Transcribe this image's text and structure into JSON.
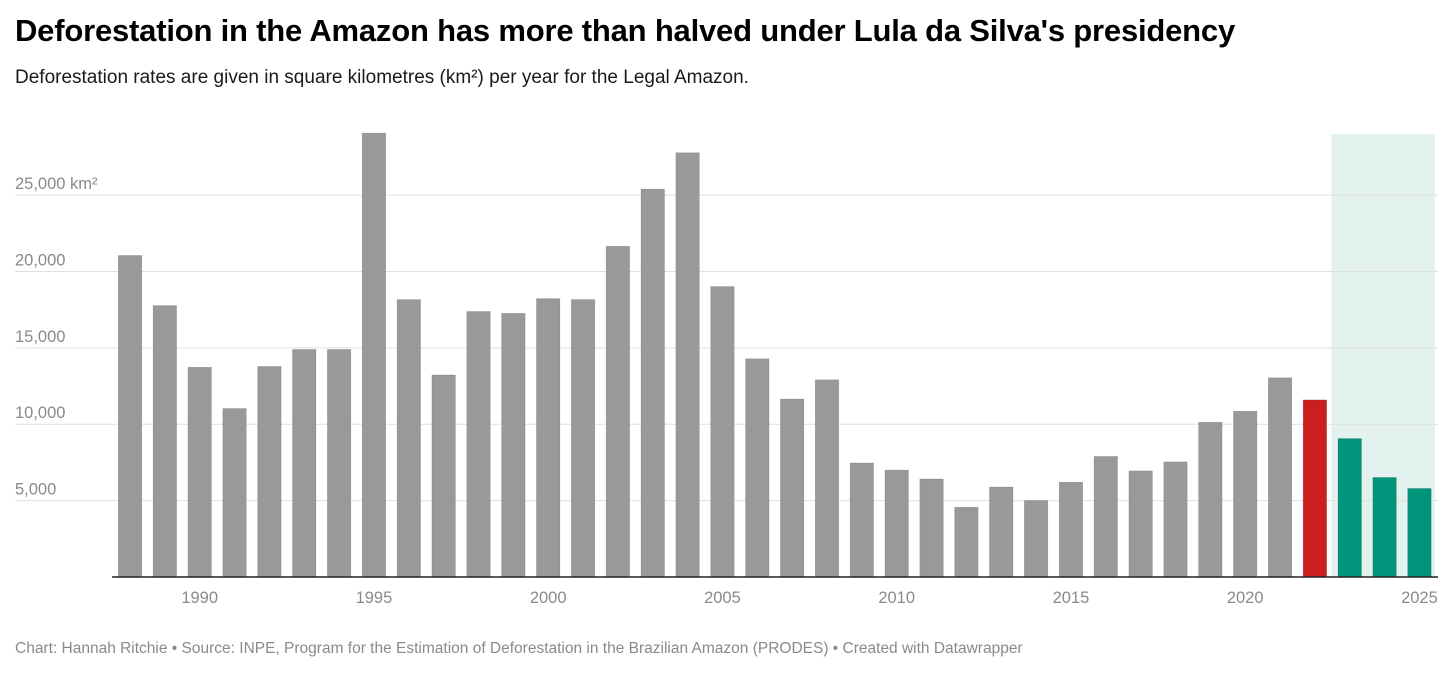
{
  "header": {
    "title": "Deforestation in the Amazon has more than halved under Lula da Silva's presidency",
    "subtitle": "Deforestation rates are given in square kilometres (km²) per year for the Legal Amazon."
  },
  "footer": {
    "credit": "Chart: Hannah Ritchie • Source: INPE, Program for the Estimation of Deforestation in the Brazilian Amazon (PRODES) • Created with Datawrapper"
  },
  "colors": {
    "default_bar": "#999999",
    "highlight_2022": "#c9201e",
    "lula_bars": "#00957a",
    "lula_band": "#e3f2ee",
    "gridline": "#e0e0e0",
    "axis": "#222222"
  },
  "chart_data": {
    "type": "bar",
    "x": [
      1988,
      1989,
      1990,
      1991,
      1992,
      1993,
      1994,
      1995,
      1996,
      1997,
      1998,
      1999,
      2000,
      2001,
      2002,
      2003,
      2004,
      2005,
      2006,
      2007,
      2008,
      2009,
      2010,
      2011,
      2012,
      2013,
      2014,
      2015,
      2016,
      2017,
      2018,
      2019,
      2020,
      2021,
      2022,
      2023,
      2024,
      2025
    ],
    "values": [
      21050,
      17770,
      13730,
      11030,
      13786,
      14896,
      14896,
      29059,
      18161,
      13227,
      17383,
      17259,
      18226,
      18165,
      21651,
      25396,
      27772,
      19014,
      14286,
      11651,
      12911,
      7464,
      7000,
      6418,
      4571,
      5891,
      5012,
      6207,
      7893,
      6947,
      7536,
      10129,
      10851,
      13038,
      11594,
      9064,
      6518,
      5796
    ],
    "bar_colors": [
      "gray",
      "gray",
      "gray",
      "gray",
      "gray",
      "gray",
      "gray",
      "gray",
      "gray",
      "gray",
      "gray",
      "gray",
      "gray",
      "gray",
      "gray",
      "gray",
      "gray",
      "gray",
      "gray",
      "gray",
      "gray",
      "gray",
      "gray",
      "gray",
      "gray",
      "gray",
      "gray",
      "gray",
      "gray",
      "gray",
      "gray",
      "gray",
      "gray",
      "gray",
      "red",
      "green",
      "green",
      "green"
    ],
    "highlight_band": {
      "from": 2023,
      "to": 2025
    },
    "title": "Deforestation in the Amazon has more than halved under Lula da Silva's presidency",
    "xlabel": "",
    "ylabel": "",
    "ylim": [
      0,
      29000
    ],
    "yticks": [
      {
        "value": 5000,
        "label": "5,000"
      },
      {
        "value": 10000,
        "label": "10,000"
      },
      {
        "value": 15000,
        "label": "15,000"
      },
      {
        "value": 20000,
        "label": "20,000"
      },
      {
        "value": 25000,
        "label": "25,000 km²"
      }
    ],
    "xticks": [
      {
        "value": 1990,
        "label": "1990"
      },
      {
        "value": 1995,
        "label": "1995"
      },
      {
        "value": 2000,
        "label": "2000"
      },
      {
        "value": 2005,
        "label": "2005"
      },
      {
        "value": 2010,
        "label": "2010"
      },
      {
        "value": 2015,
        "label": "2015"
      },
      {
        "value": 2020,
        "label": "2020"
      },
      {
        "value": 2025,
        "label": "2025"
      }
    ],
    "grid": true
  }
}
